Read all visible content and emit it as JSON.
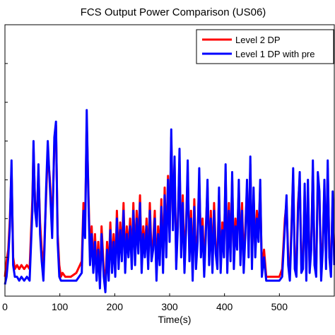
{
  "chart_data": {
    "type": "line",
    "title": "FCS Output Power Comparison (US06)",
    "xlabel": "Time(s)",
    "ylabel": "",
    "xlim": [
      0,
      600
    ],
    "ylim": [
      0,
      70
    ],
    "x_ticks": [
      0,
      100,
      200,
      300,
      400,
      500
    ],
    "x_tick_labels": [
      "0",
      "100",
      "200",
      "300",
      "400",
      "500"
    ],
    "grid": false,
    "legend_position": "top-right",
    "series": [
      {
        "name": "Level 2 DP",
        "color": "#ff0000",
        "x": [
          0,
          3,
          6,
          9,
          12,
          15,
          18,
          22,
          26,
          30,
          35,
          40,
          45,
          50,
          52,
          55,
          58,
          61,
          64,
          67,
          70,
          72,
          75,
          78,
          82,
          86,
          90,
          93,
          96,
          99,
          102,
          105,
          110,
          120,
          130,
          140,
          143,
          146,
          149,
          152,
          155,
          158,
          161,
          164,
          167,
          170,
          173,
          176,
          180,
          183,
          186,
          189,
          192,
          195,
          198,
          201,
          204,
          207,
          210,
          213,
          216,
          219,
          222,
          225,
          228,
          231,
          234,
          237,
          240,
          243,
          246,
          249,
          252,
          255,
          258,
          261,
          264,
          267,
          270,
          273,
          276,
          279,
          282,
          285,
          288,
          291,
          294,
          297,
          300,
          303,
          306,
          309,
          312,
          315,
          318,
          321,
          324,
          327,
          330,
          333,
          336,
          339,
          342,
          345,
          348,
          351,
          354,
          357,
          360,
          363,
          366,
          369,
          372,
          375,
          378,
          381,
          384,
          387,
          390,
          393,
          396,
          399,
          402,
          405,
          408,
          411,
          414,
          417,
          420,
          423,
          426,
          429,
          432,
          435,
          438,
          441,
          444,
          447,
          450,
          453,
          456,
          459,
          462,
          465,
          468,
          472,
          476,
          480,
          490,
          500,
          505,
          510,
          513,
          516,
          519,
          522,
          525,
          528,
          531,
          534,
          537,
          540,
          543,
          546,
          549,
          552,
          555,
          558,
          561,
          564,
          567,
          570,
          573,
          576,
          579,
          582,
          585,
          588,
          591,
          594,
          597,
          600
        ],
        "y": [
          5,
          9,
          12,
          20,
          33,
          10,
          7,
          8,
          7,
          8,
          7,
          8,
          7,
          25,
          38,
          24,
          20,
          32,
          19,
          12,
          7,
          14,
          26,
          37,
          30,
          18,
          39,
          44,
          16,
          8,
          5,
          6,
          5,
          5,
          6,
          9,
          24,
          18,
          45,
          27,
          10,
          18,
          8,
          16,
          6,
          14,
          4,
          18,
          7,
          3,
          14,
          6,
          19,
          8,
          16,
          7,
          22,
          9,
          19,
          11,
          24,
          8,
          18,
          12,
          20,
          9,
          24,
          10,
          22,
          13,
          26,
          8,
          18,
          12,
          20,
          9,
          24,
          11,
          14,
          22,
          6,
          18,
          10,
          25,
          8,
          28,
          12,
          31,
          16,
          41,
          19,
          34,
          9,
          20,
          35,
          12,
          26,
          8,
          19,
          32,
          11,
          22,
          6,
          25,
          9,
          16,
          30,
          12,
          20,
          7,
          18,
          28,
          10,
          22,
          8,
          24,
          13,
          9,
          26,
          8,
          19,
          12,
          32,
          8,
          24,
          11,
          30,
          9,
          20,
          14,
          28,
          10,
          24,
          8,
          18,
          28,
          12,
          34,
          9,
          26,
          12,
          22,
          16,
          28,
          7,
          12,
          5,
          5,
          5,
          5,
          7,
          20,
          24,
          10,
          6,
          18,
          31,
          9,
          7,
          24,
          30,
          8,
          9,
          27,
          6,
          28,
          8,
          14,
          33,
          10,
          7,
          30,
          25,
          6,
          14,
          28,
          9,
          33,
          12,
          7,
          25,
          10
        ],
        "values_note": ""
      },
      {
        "name": "Level 1 DP with pre",
        "color": "#0000ff",
        "x": [
          0,
          3,
          6,
          9,
          12,
          15,
          18,
          22,
          26,
          30,
          35,
          40,
          45,
          50,
          52,
          55,
          58,
          61,
          64,
          67,
          70,
          72,
          75,
          78,
          82,
          86,
          90,
          93,
          96,
          99,
          102,
          105,
          110,
          120,
          130,
          140,
          143,
          146,
          149,
          152,
          155,
          158,
          161,
          164,
          167,
          170,
          173,
          176,
          180,
          183,
          186,
          189,
          192,
          195,
          198,
          201,
          204,
          207,
          210,
          213,
          216,
          219,
          222,
          225,
          228,
          231,
          234,
          237,
          240,
          243,
          246,
          249,
          252,
          255,
          258,
          261,
          264,
          267,
          270,
          273,
          276,
          279,
          282,
          285,
          288,
          291,
          294,
          297,
          300,
          303,
          306,
          309,
          312,
          315,
          318,
          321,
          324,
          327,
          330,
          333,
          336,
          339,
          342,
          345,
          348,
          351,
          354,
          357,
          360,
          363,
          366,
          369,
          372,
          375,
          378,
          381,
          384,
          387,
          390,
          393,
          396,
          399,
          402,
          405,
          408,
          411,
          414,
          417,
          420,
          423,
          426,
          429,
          432,
          435,
          438,
          441,
          444,
          447,
          450,
          453,
          456,
          459,
          462,
          465,
          468,
          472,
          476,
          480,
          490,
          500,
          505,
          510,
          513,
          516,
          519,
          522,
          525,
          528,
          531,
          534,
          537,
          540,
          543,
          546,
          549,
          552,
          555,
          558,
          561,
          564,
          567,
          570,
          573,
          576,
          579,
          582,
          585,
          588,
          591,
          594,
          597,
          600
        ],
        "y": [
          3,
          5,
          10,
          18,
          35,
          8,
          5,
          5,
          4,
          5,
          4,
          5,
          4,
          22,
          40,
          22,
          18,
          34,
          16,
          9,
          4,
          12,
          28,
          40,
          28,
          15,
          41,
          45,
          14,
          5,
          4,
          4,
          4,
          4,
          4,
          6,
          22,
          15,
          48,
          25,
          8,
          16,
          6,
          14,
          4,
          12,
          2,
          16,
          5,
          1,
          12,
          4,
          17,
          6,
          14,
          5,
          20,
          7,
          17,
          9,
          22,
          6,
          16,
          10,
          18,
          7,
          22,
          8,
          20,
          11,
          24,
          6,
          16,
          10,
          18,
          7,
          22,
          9,
          12,
          20,
          4,
          16,
          8,
          23,
          6,
          26,
          10,
          30,
          14,
          43,
          17,
          36,
          7,
          18,
          38,
          10,
          24,
          6,
          17,
          35,
          9,
          20,
          4,
          23,
          7,
          14,
          33,
          10,
          18,
          5,
          16,
          30,
          8,
          20,
          6,
          22,
          11,
          7,
          28,
          6,
          17,
          10,
          34,
          6,
          22,
          9,
          32,
          7,
          18,
          12,
          30,
          8,
          22,
          6,
          16,
          30,
          10,
          36,
          7,
          28,
          10,
          20,
          14,
          30,
          5,
          10,
          4,
          4,
          4,
          4,
          5,
          18,
          26,
          8,
          4,
          16,
          33,
          7,
          5,
          22,
          32,
          6,
          7,
          29,
          4,
          30,
          6,
          12,
          35,
          8,
          5,
          32,
          27,
          4,
          12,
          30,
          7,
          35,
          10,
          5,
          27,
          8
        ]
      }
    ]
  }
}
